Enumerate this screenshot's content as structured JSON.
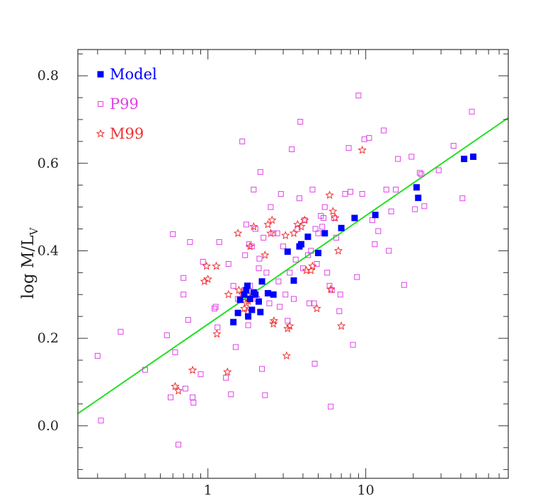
{
  "chart_data": {
    "type": "scatter",
    "title": "",
    "xlabel": "",
    "ylabel": {
      "main": "log  M/L",
      "subscript": "V"
    },
    "xscale": "log",
    "xlim": [
      0.15,
      80
    ],
    "ylim": [
      -0.12,
      0.86
    ],
    "xticks": {
      "major": [
        1,
        10
      ],
      "labels": [
        "1",
        "10"
      ]
    },
    "yticks": {
      "major": [
        0.0,
        0.2,
        0.4,
        0.6,
        0.8
      ],
      "labels": [
        "0.0",
        "0.2",
        "0.4",
        "0.6",
        "0.8"
      ]
    },
    "grid": false,
    "legend": {
      "placement": "top-left"
    },
    "series": [
      {
        "name": "Model",
        "marker": "filled-square",
        "color": "#0000ff",
        "points": [
          [
            1.45,
            0.237
          ],
          [
            1.55,
            0.258
          ],
          [
            1.6,
            0.288
          ],
          [
            1.7,
            0.3
          ],
          [
            1.75,
            0.31
          ],
          [
            1.78,
            0.32
          ],
          [
            1.8,
            0.25
          ],
          [
            1.85,
            0.29
          ],
          [
            1.9,
            0.265
          ],
          [
            1.95,
            0.305
          ],
          [
            2.0,
            0.3
          ],
          [
            2.1,
            0.284
          ],
          [
            2.15,
            0.26
          ],
          [
            2.2,
            0.33
          ],
          [
            2.4,
            0.303
          ],
          [
            2.6,
            0.3
          ],
          [
            3.2,
            0.398
          ],
          [
            3.5,
            0.332
          ],
          [
            3.8,
            0.41
          ],
          [
            3.9,
            0.415
          ],
          [
            4.3,
            0.432
          ],
          [
            5.0,
            0.395
          ],
          [
            5.5,
            0.44
          ],
          [
            7.0,
            0.452
          ],
          [
            8.5,
            0.475
          ],
          [
            11.5,
            0.482
          ],
          [
            21.0,
            0.545
          ],
          [
            21.5,
            0.521
          ],
          [
            42.0,
            0.61
          ],
          [
            48.0,
            0.615
          ]
        ]
      },
      {
        "name": "P99",
        "marker": "open-square",
        "color": "#e040e8",
        "points": [
          [
            0.2,
            0.16
          ],
          [
            0.21,
            0.012
          ],
          [
            0.28,
            0.215
          ],
          [
            0.4,
            0.128
          ],
          [
            0.55,
            0.207
          ],
          [
            0.58,
            0.065
          ],
          [
            0.6,
            0.438
          ],
          [
            0.62,
            0.168
          ],
          [
            0.65,
            -0.043
          ],
          [
            0.7,
            0.3
          ],
          [
            0.7,
            0.338
          ],
          [
            0.72,
            0.085
          ],
          [
            0.75,
            0.242
          ],
          [
            0.77,
            0.42
          ],
          [
            0.8,
            0.065
          ],
          [
            0.81,
            0.053
          ],
          [
            0.9,
            0.118
          ],
          [
            0.93,
            0.375
          ],
          [
            1.1,
            0.268
          ],
          [
            1.12,
            0.272
          ],
          [
            1.15,
            0.225
          ],
          [
            1.18,
            0.42
          ],
          [
            1.3,
            0.11
          ],
          [
            1.35,
            0.37
          ],
          [
            1.4,
            0.072
          ],
          [
            1.45,
            0.32
          ],
          [
            1.5,
            0.18
          ],
          [
            1.55,
            0.29
          ],
          [
            1.65,
            0.65
          ],
          [
            1.7,
            0.31
          ],
          [
            1.72,
            0.39
          ],
          [
            1.75,
            0.46
          ],
          [
            1.8,
            0.23
          ],
          [
            1.82,
            0.415
          ],
          [
            1.85,
            0.32
          ],
          [
            1.9,
            0.41
          ],
          [
            1.95,
            0.54
          ],
          [
            2.0,
            0.45
          ],
          [
            2.05,
            0.29
          ],
          [
            2.1,
            0.36
          ],
          [
            2.12,
            0.382
          ],
          [
            2.15,
            0.58
          ],
          [
            2.2,
            0.13
          ],
          [
            2.25,
            0.43
          ],
          [
            2.3,
            0.07
          ],
          [
            2.35,
            0.35
          ],
          [
            2.45,
            0.28
          ],
          [
            2.5,
            0.5
          ],
          [
            2.6,
            0.44
          ],
          [
            2.75,
            0.44
          ],
          [
            2.8,
            0.33
          ],
          [
            2.85,
            0.272
          ],
          [
            2.9,
            0.53
          ],
          [
            3.0,
            0.41
          ],
          [
            3.1,
            0.3
          ],
          [
            3.2,
            0.24
          ],
          [
            3.3,
            0.35
          ],
          [
            3.4,
            0.632
          ],
          [
            3.5,
            0.29
          ],
          [
            3.6,
            0.38
          ],
          [
            3.7,
            0.45
          ],
          [
            3.8,
            0.52
          ],
          [
            3.85,
            0.695
          ],
          [
            4.0,
            0.36
          ],
          [
            4.1,
            0.47
          ],
          [
            4.3,
            0.39
          ],
          [
            4.4,
            0.28
          ],
          [
            4.5,
            0.4
          ],
          [
            4.6,
            0.54
          ],
          [
            4.7,
            0.28
          ],
          [
            4.75,
            0.142
          ],
          [
            4.8,
            0.45
          ],
          [
            4.9,
            0.37
          ],
          [
            5.0,
            0.44
          ],
          [
            5.2,
            0.48
          ],
          [
            5.3,
            0.455
          ],
          [
            5.4,
            0.475
          ],
          [
            5.5,
            0.5
          ],
          [
            5.7,
            0.35
          ],
          [
            5.9,
            0.32
          ],
          [
            6.0,
            0.044
          ],
          [
            6.1,
            0.31
          ],
          [
            6.3,
            0.475
          ],
          [
            6.5,
            0.43
          ],
          [
            6.8,
            0.262
          ],
          [
            6.9,
            0.3
          ],
          [
            7.4,
            0.53
          ],
          [
            7.8,
            0.635
          ],
          [
            8.0,
            0.535
          ],
          [
            8.3,
            0.185
          ],
          [
            8.8,
            0.34
          ],
          [
            9.0,
            0.755
          ],
          [
            9.5,
            0.53
          ],
          [
            9.8,
            0.655
          ],
          [
            10.5,
            0.658
          ],
          [
            11.0,
            0.47
          ],
          [
            11.4,
            0.415
          ],
          [
            12.0,
            0.445
          ],
          [
            13.0,
            0.675
          ],
          [
            13.5,
            0.54
          ],
          [
            14.0,
            0.4
          ],
          [
            14.5,
            0.49
          ],
          [
            15.5,
            0.54
          ],
          [
            16.0,
            0.61
          ],
          [
            17.5,
            0.322
          ],
          [
            19.5,
            0.615
          ],
          [
            20.5,
            0.495
          ],
          [
            22.0,
            0.578
          ],
          [
            22.5,
            0.575
          ],
          [
            23.5,
            0.502
          ],
          [
            29.0,
            0.584
          ],
          [
            36.0,
            0.64
          ],
          [
            41.0,
            0.52
          ],
          [
            47.0,
            0.718
          ]
        ]
      },
      {
        "name": "M99",
        "marker": "open-star",
        "color": "#f03030",
        "points": [
          [
            0.62,
            0.09
          ],
          [
            0.65,
            0.08
          ],
          [
            0.8,
            0.127
          ],
          [
            0.95,
            0.33
          ],
          [
            0.98,
            0.365
          ],
          [
            1.0,
            0.335
          ],
          [
            1.13,
            0.365
          ],
          [
            1.14,
            0.21
          ],
          [
            1.33,
            0.123
          ],
          [
            1.35,
            0.3
          ],
          [
            1.55,
            0.44
          ],
          [
            1.57,
            0.31
          ],
          [
            1.65,
            0.3
          ],
          [
            1.7,
            0.268
          ],
          [
            1.75,
            0.28
          ],
          [
            1.78,
            0.26
          ],
          [
            1.8,
            0.285
          ],
          [
            1.85,
            0.41
          ],
          [
            1.9,
            0.3
          ],
          [
            1.95,
            0.455
          ],
          [
            2.3,
            0.39
          ],
          [
            2.4,
            0.46
          ],
          [
            2.5,
            0.44
          ],
          [
            2.55,
            0.47
          ],
          [
            2.6,
            0.233
          ],
          [
            2.62,
            0.24
          ],
          [
            3.1,
            0.435
          ],
          [
            3.15,
            0.16
          ],
          [
            3.2,
            0.222
          ],
          [
            3.3,
            0.228
          ],
          [
            3.5,
            0.44
          ],
          [
            3.7,
            0.46
          ],
          [
            3.9,
            0.455
          ],
          [
            4.1,
            0.47
          ],
          [
            4.2,
            0.355
          ],
          [
            4.5,
            0.355
          ],
          [
            4.6,
            0.365
          ],
          [
            4.9,
            0.268
          ],
          [
            5.9,
            0.527
          ],
          [
            6.0,
            0.312
          ],
          [
            6.2,
            0.49
          ],
          [
            6.4,
            0.475
          ],
          [
            6.7,
            0.4
          ],
          [
            7.0,
            0.228
          ],
          [
            9.5,
            0.63
          ]
        ]
      }
    ],
    "fit_line": {
      "color": "#22e022",
      "points": [
        [
          0.15,
          0.028
        ],
        [
          80,
          0.704
        ]
      ]
    }
  }
}
